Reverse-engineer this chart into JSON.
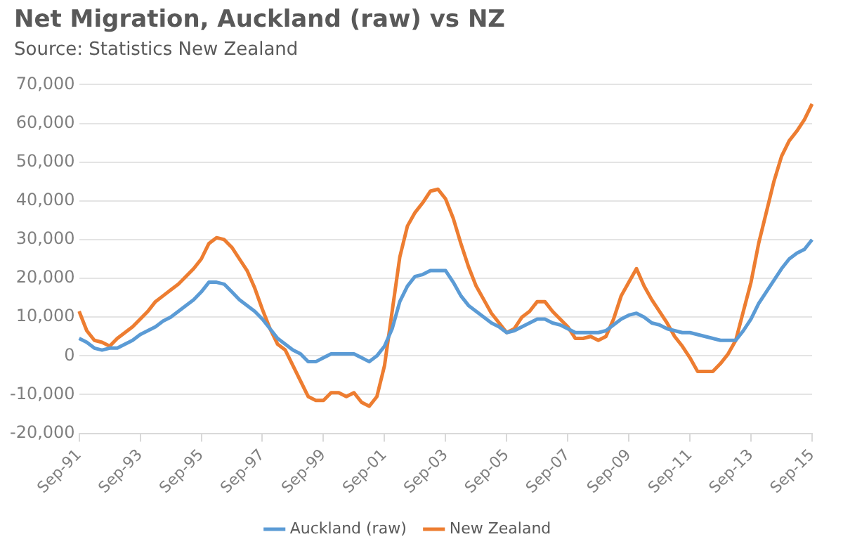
{
  "chart_data": {
    "type": "line",
    "title": "Net Migration, Auckland (raw) vs NZ",
    "subtitle": "Source: Statistics New Zealand",
    "categories": [
      "Sep-91",
      null,
      null,
      null,
      null,
      null,
      null,
      null,
      "Sep-93",
      null,
      null,
      null,
      null,
      null,
      null,
      null,
      "Sep-95",
      null,
      null,
      null,
      null,
      null,
      null,
      null,
      "Sep-97",
      null,
      null,
      null,
      null,
      null,
      null,
      null,
      "Sep-99",
      null,
      null,
      null,
      null,
      null,
      null,
      null,
      "Sep-01",
      null,
      null,
      null,
      null,
      null,
      null,
      null,
      "Sep-03",
      null,
      null,
      null,
      null,
      null,
      null,
      null,
      "Sep-05",
      null,
      null,
      null,
      null,
      null,
      null,
      null,
      "Sep-07",
      null,
      null,
      null,
      null,
      null,
      null,
      null,
      "Sep-09",
      null,
      null,
      null,
      null,
      null,
      null,
      null,
      "Sep-11",
      null,
      null,
      null,
      null,
      null,
      null,
      null,
      "Sep-13",
      null,
      null,
      null,
      null,
      null,
      null,
      null,
      "Sep-15"
    ],
    "series": [
      {
        "name": "Auckland (raw)",
        "color": "#5b9bd5",
        "values": [
          4500,
          3500,
          2000,
          1500,
          2000,
          2000,
          3000,
          4000,
          5500,
          6500,
          7500,
          9000,
          10000,
          11500,
          13000,
          14500,
          16500,
          19000,
          19000,
          18500,
          16500,
          14500,
          13000,
          11500,
          9500,
          7000,
          4500,
          3000,
          1500,
          500,
          -1500,
          -1500,
          -500,
          500,
          500,
          500,
          500,
          -500,
          -1500,
          0,
          2500,
          7000,
          14000,
          18000,
          20500,
          21000,
          22000,
          22000,
          22000,
          19000,
          15500,
          13000,
          11500,
          10000,
          8500,
          7500,
          6000,
          6500,
          7500,
          8500,
          9500,
          9500,
          8500,
          8000,
          7000,
          6000,
          6000,
          6000,
          6000,
          6500,
          8000,
          9500,
          10500,
          11000,
          10000,
          8500,
          8000,
          7000,
          6500,
          6000,
          6000,
          5500,
          5000,
          4500,
          4000,
          4000,
          4000,
          6500,
          9500,
          13500,
          16500,
          19500,
          22500,
          25000,
          26500,
          27500,
          30000
        ]
      },
      {
        "name": "New Zealand",
        "color": "#ed7d31",
        "values": [
          11500,
          6500,
          4000,
          3500,
          2500,
          4500,
          6000,
          7500,
          9500,
          11500,
          14000,
          15500,
          17000,
          18500,
          20500,
          22500,
          25000,
          29000,
          30500,
          30000,
          28000,
          25000,
          22000,
          17500,
          12000,
          7000,
          3000,
          1500,
          -2500,
          -6500,
          -10500,
          -11500,
          -11500,
          -9500,
          -9500,
          -10500,
          -9500,
          -12000,
          -13000,
          -10500,
          -2500,
          11500,
          25500,
          33500,
          37000,
          39500,
          42500,
          43000,
          40500,
          35500,
          29000,
          23000,
          18000,
          14500,
          11000,
          8500,
          6000,
          7000,
          10000,
          11500,
          14000,
          14000,
          11500,
          9500,
          7500,
          4500,
          4500,
          5000,
          4000,
          5000,
          9500,
          15500,
          19000,
          22500,
          18000,
          14500,
          11500,
          8500,
          5000,
          2500,
          -500,
          -4000,
          -4000,
          -4000,
          -2000,
          500,
          4000,
          11500,
          19000,
          29000,
          37000,
          45000,
          51500,
          55500,
          58000,
          61000,
          65000
        ]
      }
    ],
    "ylim": [
      -20000,
      70000
    ],
    "yticks": [
      {
        "value": -20000,
        "label": "-20,000"
      },
      {
        "value": -10000,
        "label": "-10,000"
      },
      {
        "value": 0,
        "label": "0"
      },
      {
        "value": 10000,
        "label": "10,000"
      },
      {
        "value": 20000,
        "label": "20,000"
      },
      {
        "value": 30000,
        "label": "30,000"
      },
      {
        "value": 40000,
        "label": "40,000"
      },
      {
        "value": 50000,
        "label": "50,000"
      },
      {
        "value": 60000,
        "label": "60,000"
      },
      {
        "value": 70000,
        "label": "70,000"
      }
    ],
    "grid": "y",
    "legend": "bottom",
    "marker": "none",
    "line_style": "solid"
  }
}
